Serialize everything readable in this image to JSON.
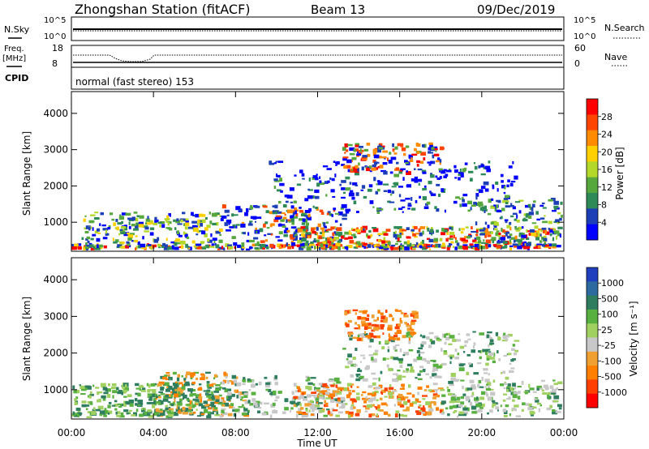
{
  "header": {
    "station": "Zhongshan Station (fitACF)",
    "beam": "Beam 13",
    "date": "09/Dec/2019"
  },
  "status_panels": {
    "nsky_label": "N.Sky",
    "nsky_ticks": [
      "10^5",
      "10^0"
    ],
    "nsearch_label": "N.Search",
    "nsearch_ticks": [
      "10^5",
      "10^0"
    ],
    "freq_label": "Freq.",
    "freq_unit": "[MHz]",
    "freq_ticks": [
      "18",
      "8"
    ],
    "nave_label": "Nave",
    "nave_ticks": [
      "60",
      "0"
    ],
    "cpid_label": "CPID",
    "cpid_value": "normal (fast stereo) 153"
  },
  "colors": {
    "power_scale": [
      "#0000ff",
      "#1c3fb8",
      "#2e8b57",
      "#56a83c",
      "#b4d82a",
      "#ffd000",
      "#ff8c00",
      "#ff4500",
      "#ff0000"
    ],
    "velocity_scale": [
      "#1f3fbf",
      "#2d6a9f",
      "#2e7d5e",
      "#58b040",
      "#a0d060",
      "#c8c8c8",
      "#f0a030",
      "#ff7f00",
      "#ff4000",
      "#ff0000"
    ]
  },
  "chart_data": [
    {
      "type": "heatmap",
      "panel": "power",
      "ylabel": "Slant Range [km]",
      "yticks": [
        "1000",
        "2000",
        "3000",
        "4000"
      ],
      "ylim": [
        200,
        4600
      ],
      "xlim": [
        "00:00",
        "24:00"
      ],
      "colorbar_label": "Power [dB]",
      "colorbar_ticks": [
        "4",
        "8",
        "12",
        "16",
        "20",
        "24",
        "28"
      ]
    },
    {
      "type": "heatmap",
      "panel": "velocity",
      "ylabel": "Slant Range [km]",
      "yticks": [
        "1000",
        "2000",
        "3000",
        "4000"
      ],
      "ylim": [
        200,
        4600
      ],
      "xlim": [
        "00:00",
        "24:00"
      ],
      "colorbar_label": "Velocity [m s⁻¹]",
      "colorbar_ticks": [
        "1000",
        "500",
        "100",
        "25",
        "-25",
        "-100",
        "-500",
        "-1000"
      ]
    }
  ],
  "xaxis": {
    "ticks": [
      "00:00",
      "04:00",
      "08:00",
      "12:00",
      "16:00",
      "20:00",
      "00:00"
    ],
    "label": "Time UT"
  }
}
